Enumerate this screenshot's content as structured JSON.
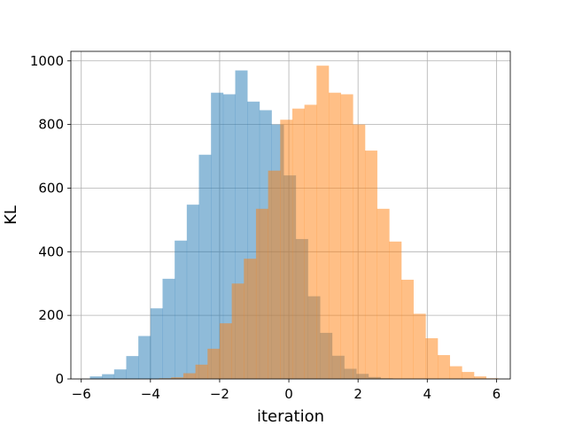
{
  "chart_data": {
    "type": "bar",
    "subtype": "overlapping-histogram",
    "title": "",
    "xlabel": "iteration",
    "ylabel": "KL",
    "xlim": [
      -6.3,
      6.4
    ],
    "ylim": [
      0,
      1030
    ],
    "xticks": [
      -6,
      -4,
      -2,
      0,
      2,
      4,
      6
    ],
    "xtick_labels": [
      "−6",
      "−4",
      "−2",
      "0",
      "2",
      "4",
      "6"
    ],
    "yticks": [
      0,
      200,
      400,
      600,
      800,
      1000
    ],
    "grid": true,
    "bin_width": 0.35,
    "series": [
      {
        "color": "#1f77b4",
        "alpha": 0.5,
        "bin_start": -5.75,
        "values": [
          8,
          15,
          30,
          72,
          135,
          222,
          315,
          435,
          548,
          705,
          900,
          895,
          970,
          872,
          845,
          800,
          640,
          440,
          260,
          145,
          73,
          32,
          16,
          6,
          2
        ]
      },
      {
        "color": "#ff7f0e",
        "alpha": 0.5,
        "bin_start": -3.75,
        "values": [
          2,
          5,
          18,
          45,
          95,
          175,
          300,
          378,
          535,
          655,
          815,
          850,
          862,
          985,
          900,
          895,
          800,
          718,
          535,
          432,
          312,
          205,
          128,
          75,
          40,
          22,
          8,
          2
        ]
      }
    ]
  }
}
